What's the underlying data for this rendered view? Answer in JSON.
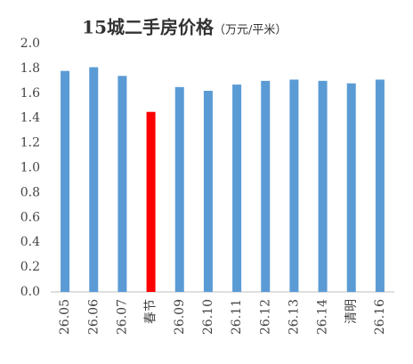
{
  "chart_data": {
    "type": "bar",
    "title": "15城二手房价格",
    "subtitle": "（万元/平米）",
    "categories": [
      "26.05",
      "26.06",
      "26.07",
      "春节",
      "26.09",
      "26.10",
      "26.11",
      "26.12",
      "26.13",
      "26.14",
      "清明",
      "26.16"
    ],
    "values": [
      1.78,
      1.81,
      1.74,
      1.45,
      1.65,
      1.62,
      1.67,
      1.7,
      1.71,
      1.7,
      1.68,
      1.71
    ],
    "colors": [
      "#5b9bd5",
      "#5b9bd5",
      "#5b9bd5",
      "#ff0000",
      "#5b9bd5",
      "#5b9bd5",
      "#5b9bd5",
      "#5b9bd5",
      "#5b9bd5",
      "#5b9bd5",
      "#5b9bd5",
      "#5b9bd5"
    ],
    "ylim": [
      0,
      2
    ],
    "yticks": [
      {
        "value": 0,
        "label": "0.0"
      },
      0.2,
      0.4,
      0.6,
      0.8,
      {
        "value": 1,
        "label": "1.0"
      },
      1.2,
      1.4,
      1.6,
      1.8,
      {
        "value": 2,
        "label": "2.0"
      }
    ],
    "grid": false
  }
}
